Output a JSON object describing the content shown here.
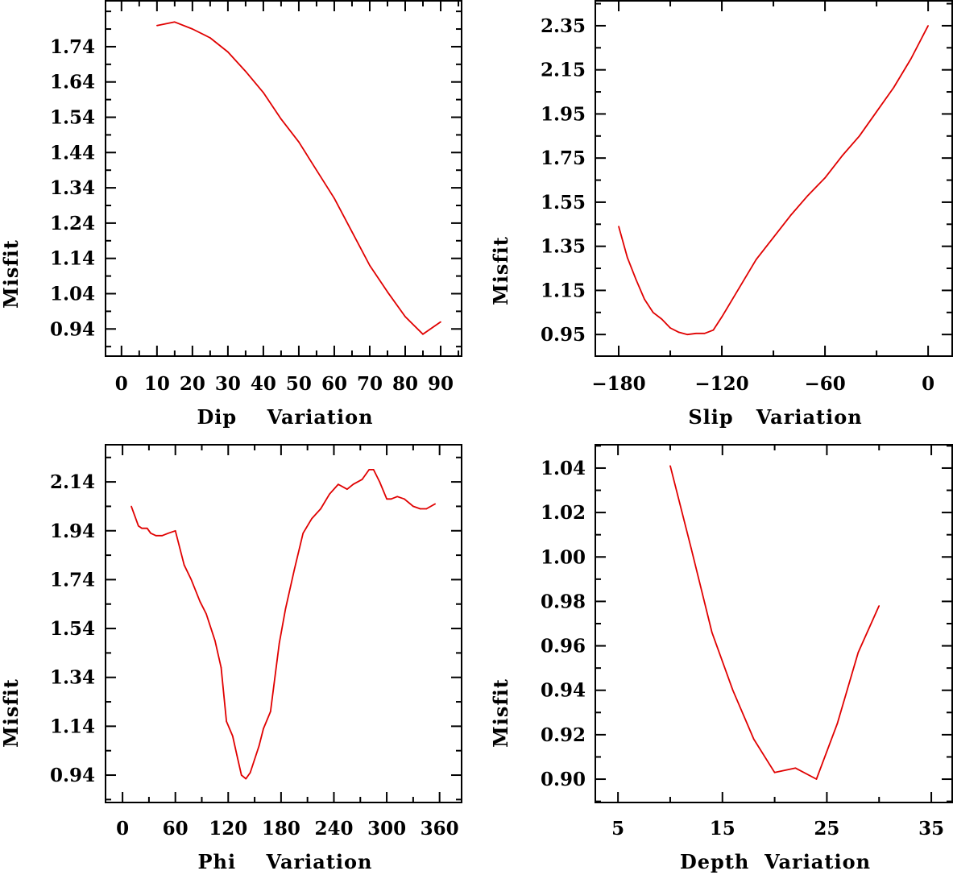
{
  "chart_data": [
    {
      "type": "line",
      "title": "",
      "xlabel": "Dip    Variation",
      "ylabel": "Misfit",
      "xlim": [
        -4.5,
        95.9
      ],
      "ylim": [
        0.863,
        1.87
      ],
      "xticks": [
        0,
        10,
        20,
        30,
        40,
        50,
        60,
        70,
        80,
        90
      ],
      "xtick_labels": [
        "0",
        "10",
        "20",
        "30",
        "40",
        "50",
        "60",
        "70",
        "80",
        "90"
      ],
      "xminor_step": 5,
      "yticks": [
        0.94,
        1.04,
        1.14,
        1.24,
        1.34,
        1.44,
        1.54,
        1.64,
        1.74
      ],
      "ytick_labels": [
        "0.94",
        "1.04",
        "1.14",
        "1.24",
        "1.34",
        "1.44",
        "1.54",
        "1.64",
        "1.74"
      ],
      "yminor_step": 0.05,
      "color": "#e00000",
      "x": [
        10,
        15,
        20,
        25,
        30,
        35,
        40,
        45,
        50,
        55,
        60,
        65,
        70,
        75,
        80,
        85,
        90
      ],
      "y": [
        1.8,
        1.81,
        1.79,
        1.765,
        1.725,
        1.67,
        1.61,
        1.535,
        1.47,
        1.39,
        1.31,
        1.215,
        1.12,
        1.045,
        0.975,
        0.925,
        0.96
      ]
    },
    {
      "type": "line",
      "title": "",
      "xlabel": "Slip   Variation",
      "ylabel": "Misfit",
      "xlim": [
        -193.6,
        14
      ],
      "ylim": [
        0.852,
        2.463
      ],
      "xticks": [
        -180,
        -120,
        -60,
        0
      ],
      "xtick_labels": [
        "−180",
        "−120",
        "−60",
        "0"
      ],
      "xminor_step": 30,
      "yticks": [
        0.95,
        1.15,
        1.35,
        1.55,
        1.75,
        1.95,
        2.15,
        2.35
      ],
      "ytick_labels": [
        "0.95",
        "1.15",
        "1.35",
        "1.55",
        "1.75",
        "1.95",
        "2.15",
        "2.35"
      ],
      "yminor_step": 0.1,
      "color": "#e00000",
      "x": [
        -180,
        -175,
        -170,
        -165,
        -160,
        -155,
        -150,
        -145,
        -140,
        -135,
        -130,
        -125,
        -120,
        -110,
        -100,
        -90,
        -80,
        -70,
        -60,
        -50,
        -40,
        -30,
        -20,
        -10,
        0
      ],
      "y": [
        1.44,
        1.3,
        1.2,
        1.11,
        1.05,
        1.02,
        0.98,
        0.96,
        0.95,
        0.955,
        0.955,
        0.97,
        1.03,
        1.16,
        1.29,
        1.39,
        1.49,
        1.58,
        1.66,
        1.76,
        1.85,
        1.96,
        2.07,
        2.2,
        2.35
      ]
    },
    {
      "type": "line",
      "title": "",
      "xlabel": "Phi    Variation",
      "ylabel": "Misfit",
      "xlim": [
        -19.3,
        385
      ],
      "ylim": [
        0.828,
        2.292
      ],
      "xticks": [
        0,
        60,
        120,
        180,
        240,
        300,
        360
      ],
      "xtick_labels": [
        "0",
        "60",
        "120",
        "180",
        "240",
        "300",
        "360"
      ],
      "xminor_step": 30,
      "yticks": [
        0.94,
        1.14,
        1.34,
        1.54,
        1.74,
        1.94,
        2.14
      ],
      "ytick_labels": [
        "0.94",
        "1.14",
        "1.34",
        "1.54",
        "1.74",
        "1.94",
        "2.14"
      ],
      "yminor_step": 0.1,
      "color": "#e00000",
      "x": [
        10,
        18,
        22,
        28,
        32,
        38,
        45,
        52,
        60,
        70,
        78,
        88,
        95,
        105,
        112,
        118,
        125,
        130,
        135,
        140,
        145,
        155,
        160,
        168,
        178,
        185,
        195,
        205,
        215,
        225,
        235,
        245,
        255,
        262,
        272,
        280,
        285,
        292,
        300,
        305,
        312,
        320,
        330,
        338,
        345,
        355
      ],
      "y": [
        2.04,
        1.96,
        1.95,
        1.95,
        1.93,
        1.92,
        1.92,
        1.93,
        1.94,
        1.8,
        1.74,
        1.65,
        1.6,
        1.49,
        1.38,
        1.16,
        1.1,
        1.02,
        0.94,
        0.925,
        0.95,
        1.06,
        1.13,
        1.2,
        1.48,
        1.62,
        1.78,
        1.93,
        1.99,
        2.03,
        2.09,
        2.13,
        2.11,
        2.13,
        2.15,
        2.19,
        2.19,
        2.14,
        2.07,
        2.07,
        2.08,
        2.07,
        2.04,
        2.03,
        2.03,
        2.05
      ]
    },
    {
      "type": "line",
      "title": "",
      "xlabel": "Depth  Variation",
      "ylabel": "Misfit",
      "xlim": [
        2.83,
        37.0
      ],
      "ylim": [
        0.8895,
        1.0505
      ],
      "xticks": [
        5,
        15,
        25,
        35
      ],
      "xtick_labels": [
        "5",
        "15",
        "25",
        "35"
      ],
      "xminor_step": 5,
      "yticks": [
        0.9,
        0.92,
        0.94,
        0.96,
        0.98,
        1.0,
        1.02,
        1.04
      ],
      "ytick_labels": [
        "0.90",
        "0.92",
        "0.94",
        "0.96",
        "0.98",
        "1.00",
        "1.02",
        "1.04"
      ],
      "yminor_step": 0.01,
      "color": "#e00000",
      "x": [
        10,
        12,
        14,
        16,
        18,
        20,
        22,
        24,
        26,
        28,
        30
      ],
      "y": [
        1.041,
        1.004,
        0.966,
        0.94,
        0.918,
        0.903,
        0.905,
        0.9,
        0.925,
        0.957,
        0.978
      ]
    }
  ]
}
